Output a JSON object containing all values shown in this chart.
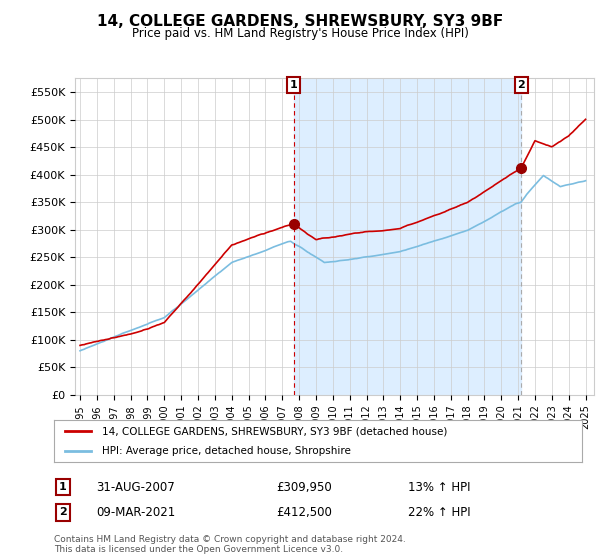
{
  "title": "14, COLLEGE GARDENS, SHREWSBURY, SY3 9BF",
  "subtitle": "Price paid vs. HM Land Registry's House Price Index (HPI)",
  "ylim": [
    0,
    575000
  ],
  "yticks": [
    0,
    50000,
    100000,
    150000,
    200000,
    250000,
    300000,
    350000,
    400000,
    450000,
    500000,
    550000
  ],
  "ytick_labels": [
    "£0",
    "£50K",
    "£100K",
    "£150K",
    "£200K",
    "£250K",
    "£300K",
    "£350K",
    "£400K",
    "£450K",
    "£500K",
    "£550K"
  ],
  "sale1_x": 2007.667,
  "sale1_y": 309950,
  "sale1_label": "1",
  "sale2_x": 2021.19,
  "sale2_y": 412500,
  "sale2_label": "2",
  "hpi_color": "#7bbde0",
  "hpi_fill_color": "#ddeeff",
  "property_color": "#cc0000",
  "marker_fill_color": "#990000",
  "sale1_vline_color": "#cc0000",
  "sale2_vline_color": "#aaaaaa",
  "legend_property": "14, COLLEGE GARDENS, SHREWSBURY, SY3 9BF (detached house)",
  "legend_hpi": "HPI: Average price, detached house, Shropshire",
  "table_row1_num": "1",
  "table_row1_date": "31-AUG-2007",
  "table_row1_price": "£309,950",
  "table_row1_hpi": "13% ↑ HPI",
  "table_row2_num": "2",
  "table_row2_date": "09-MAR-2021",
  "table_row2_price": "£412,500",
  "table_row2_hpi": "22% ↑ HPI",
  "footer": "Contains HM Land Registry data © Crown copyright and database right 2024.\nThis data is licensed under the Open Government Licence v3.0.",
  "background_color": "#ffffff",
  "plot_bg_color": "#ffffff",
  "grid_color": "#cccccc",
  "xlim_left": 1994.7,
  "xlim_right": 2025.5
}
